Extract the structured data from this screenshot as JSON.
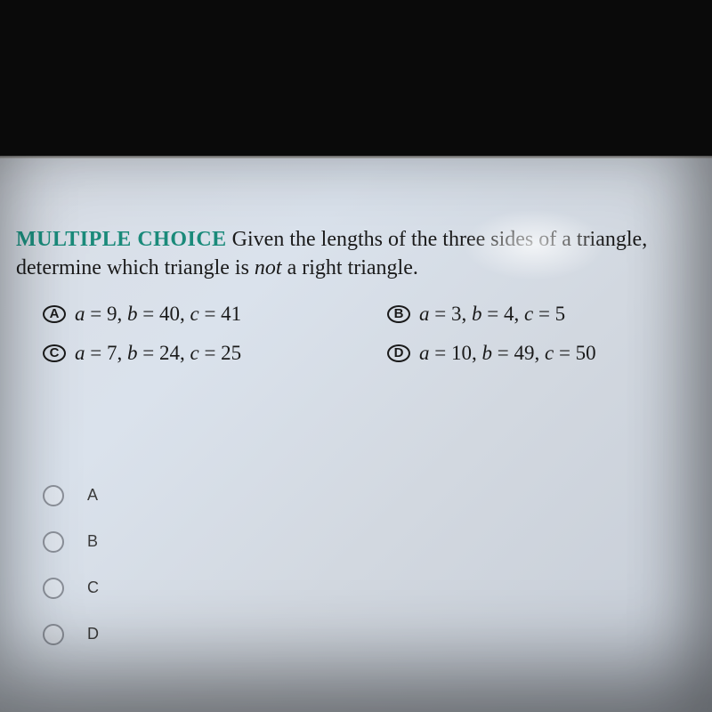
{
  "header": {
    "mc_label": "MULTIPLE CHOICE",
    "question_line1": "Given the lengths of the three sides of a triangle,",
    "question_line2_pre": "determine which triangle is ",
    "question_line2_italic": "not",
    "question_line2_post": " a right triangle."
  },
  "options": {
    "A": {
      "letter": "A",
      "a": "9",
      "b": "40",
      "c": "41"
    },
    "B": {
      "letter": "B",
      "a": "3",
      "b": "4",
      "c": "5"
    },
    "C": {
      "letter": "C",
      "a": "7",
      "b": "24",
      "c": "25"
    },
    "D": {
      "letter": "D",
      "a": "10",
      "b": "49",
      "c": "50"
    }
  },
  "answers": {
    "A": "A",
    "B": "B",
    "C": "C",
    "D": "D"
  },
  "style": {
    "mc_label_color": "#1a8a7a",
    "text_color": "#1a1a1a",
    "bg_gradient_start": "#d8dde5",
    "bg_gradient_end": "#c5ccd6",
    "question_fontsize": 24,
    "option_fontsize": 23,
    "answer_fontsize": 18,
    "radio_border": "#8a8f98"
  }
}
